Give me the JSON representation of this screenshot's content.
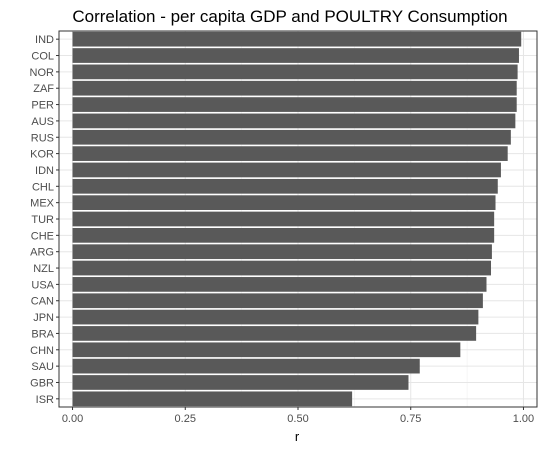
{
  "chart_data": {
    "type": "bar",
    "orientation": "horizontal",
    "title": "Correlation - per capita GDP and POULTRY Consumption",
    "xlabel": "r",
    "ylabel": "",
    "xlim": [
      -0.03,
      1.03
    ],
    "x_ticks": [
      0.0,
      0.25,
      0.5,
      0.75,
      1.0
    ],
    "x_tick_labels": [
      "0.00",
      "0.25",
      "0.50",
      "0.75",
      "1.00"
    ],
    "grid": true,
    "legend": "none",
    "bar_color": "#595959",
    "categories": [
      "IND",
      "COL",
      "NOR",
      "ZAF",
      "PER",
      "AUS",
      "RUS",
      "KOR",
      "IDN",
      "CHL",
      "MEX",
      "TUR",
      "CHE",
      "ARG",
      "NZL",
      "USA",
      "CAN",
      "JPN",
      "BRA",
      "CHN",
      "SAU",
      "GBR",
      "ISR"
    ],
    "values": [
      0.995,
      0.99,
      0.987,
      0.985,
      0.985,
      0.982,
      0.972,
      0.965,
      0.95,
      0.943,
      0.938,
      0.935,
      0.935,
      0.93,
      0.928,
      0.918,
      0.91,
      0.9,
      0.895,
      0.86,
      0.77,
      0.745,
      0.62
    ]
  }
}
